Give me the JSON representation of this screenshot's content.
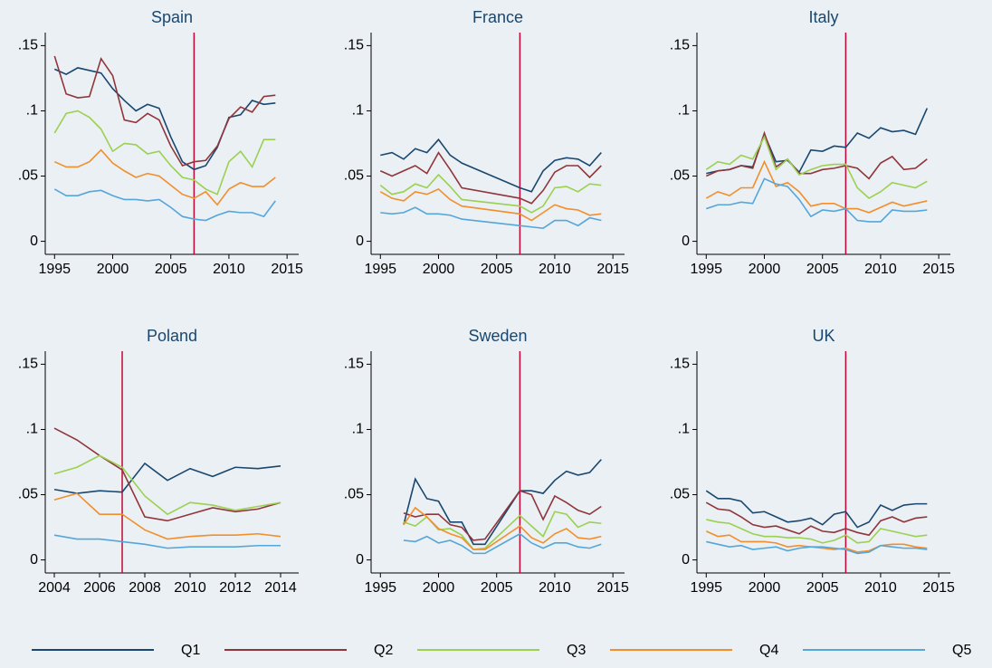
{
  "chart_data": [
    {
      "type": "line",
      "title": "Spain",
      "vline": 2007,
      "x": [
        1995,
        1996,
        1997,
        1998,
        1999,
        2000,
        2001,
        2002,
        2003,
        2004,
        2005,
        2006,
        2007,
        2008,
        2009,
        2010,
        2011,
        2012,
        2013,
        2014
      ],
      "series": [
        {
          "name": "Q1",
          "color": "#1a476f",
          "values": [
            0.132,
            0.128,
            0.133,
            0.131,
            0.129,
            0.117,
            0.108,
            0.1,
            0.105,
            0.102,
            0.08,
            0.061,
            0.055,
            0.058,
            0.072,
            0.095,
            0.097,
            0.108,
            0.105,
            0.106
          ]
        },
        {
          "name": "Q2",
          "color": "#90353b",
          "values": [
            0.142,
            0.113,
            0.11,
            0.111,
            0.14,
            0.127,
            0.093,
            0.091,
            0.098,
            0.093,
            0.073,
            0.058,
            0.061,
            0.062,
            0.073,
            0.094,
            0.103,
            0.099,
            0.111,
            0.112
          ]
        },
        {
          "name": "Q3",
          "color": "#9bd050",
          "values": [
            0.083,
            0.098,
            0.1,
            0.095,
            0.086,
            0.069,
            0.075,
            0.074,
            0.067,
            0.069,
            0.058,
            0.049,
            0.047,
            0.04,
            0.036,
            0.061,
            0.069,
            0.057,
            0.078,
            0.078
          ]
        },
        {
          "name": "Q4",
          "color": "#f28e2b",
          "values": [
            0.061,
            0.057,
            0.057,
            0.061,
            0.07,
            0.06,
            0.054,
            0.049,
            0.052,
            0.05,
            0.043,
            0.036,
            0.033,
            0.038,
            0.028,
            0.04,
            0.045,
            0.042,
            0.042,
            0.049
          ]
        },
        {
          "name": "Q5",
          "color": "#55a6d9",
          "values": [
            0.04,
            0.035,
            0.035,
            0.038,
            0.039,
            0.035,
            0.032,
            0.032,
            0.031,
            0.032,
            0.026,
            0.019,
            0.017,
            0.016,
            0.02,
            0.023,
            0.022,
            0.022,
            0.019,
            0.031
          ]
        }
      ],
      "xlim": [
        1994.2,
        2016
      ],
      "ylim": [
        -0.01,
        0.16
      ],
      "xticks": [
        1995,
        2000,
        2005,
        2010,
        2015
      ],
      "yticks": [
        0,
        {
          "value": 0.05,
          "label": ".05"
        },
        {
          "value": 0.1,
          "label": ".1"
        },
        {
          "value": 0.15,
          "label": ".15"
        }
      ]
    },
    {
      "type": "line",
      "title": "France",
      "vline": 2007,
      "x": [
        1995,
        1996,
        1997,
        1998,
        1999,
        2000,
        2001,
        2002,
        2007,
        2008,
        2009,
        2010,
        2011,
        2012,
        2013,
        2014
      ],
      "series": [
        {
          "name": "Q1",
          "color": "#1a476f",
          "values": [
            0.066,
            0.068,
            0.063,
            0.071,
            0.068,
            0.078,
            0.066,
            0.06,
            0.041,
            0.038,
            0.054,
            0.062,
            0.064,
            0.063,
            0.058,
            0.068
          ]
        },
        {
          "name": "Q2",
          "color": "#90353b",
          "values": [
            0.054,
            0.05,
            0.054,
            0.058,
            0.052,
            0.068,
            0.055,
            0.041,
            0.033,
            0.029,
            0.039,
            0.053,
            0.058,
            0.058,
            0.049,
            0.058
          ]
        },
        {
          "name": "Q3",
          "color": "#9bd050",
          "values": [
            0.043,
            0.036,
            0.038,
            0.044,
            0.041,
            0.051,
            0.042,
            0.032,
            0.027,
            0.022,
            0.027,
            0.041,
            0.042,
            0.038,
            0.044,
            0.043
          ]
        },
        {
          "name": "Q4",
          "color": "#f28e2b",
          "values": [
            0.038,
            0.033,
            0.031,
            0.038,
            0.036,
            0.04,
            0.032,
            0.027,
            0.021,
            0.016,
            0.022,
            0.028,
            0.025,
            0.024,
            0.02,
            0.021
          ]
        },
        {
          "name": "Q5",
          "color": "#55a6d9",
          "values": [
            0.022,
            0.021,
            0.022,
            0.026,
            0.021,
            0.021,
            0.02,
            0.017,
            0.012,
            0.011,
            0.01,
            0.016,
            0.016,
            0.012,
            0.018,
            0.016
          ]
        }
      ],
      "xlim": [
        1994.2,
        2016
      ],
      "ylim": [
        -0.01,
        0.16
      ],
      "xticks": [
        1995,
        2000,
        2005,
        2010,
        2015
      ],
      "yticks": [
        0,
        {
          "value": 0.05,
          "label": ".05"
        },
        {
          "value": 0.1,
          "label": ".1"
        },
        {
          "value": 0.15,
          "label": ".15"
        }
      ]
    },
    {
      "type": "line",
      "title": "Italy",
      "vline": 2007,
      "x": [
        1995,
        1996,
        1997,
        1998,
        1999,
        2000,
        2001,
        2002,
        2003,
        2004,
        2005,
        2006,
        2007,
        2008,
        2009,
        2010,
        2011,
        2012,
        2013,
        2014
      ],
      "series": [
        {
          "name": "Q1",
          "color": "#1a476f",
          "values": [
            0.052,
            0.054,
            0.055,
            0.058,
            0.057,
            0.082,
            0.061,
            0.062,
            0.053,
            0.07,
            0.069,
            0.073,
            0.072,
            0.083,
            0.079,
            0.087,
            0.084,
            0.085,
            0.082,
            0.102
          ]
        },
        {
          "name": "Q2",
          "color": "#90353b",
          "values": [
            0.05,
            0.054,
            0.055,
            0.058,
            0.056,
            0.083,
            0.057,
            0.063,
            0.052,
            0.052,
            0.055,
            0.056,
            0.058,
            0.056,
            0.048,
            0.06,
            0.065,
            0.055,
            0.056,
            0.063
          ]
        },
        {
          "name": "Q3",
          "color": "#9bd050",
          "values": [
            0.055,
            0.061,
            0.059,
            0.066,
            0.063,
            0.08,
            0.055,
            0.063,
            0.051,
            0.055,
            0.058,
            0.059,
            0.059,
            0.041,
            0.033,
            0.038,
            0.045,
            0.043,
            0.041,
            0.046
          ]
        },
        {
          "name": "Q4",
          "color": "#f28e2b",
          "values": [
            0.033,
            0.038,
            0.035,
            0.041,
            0.041,
            0.061,
            0.042,
            0.045,
            0.038,
            0.027,
            0.029,
            0.029,
            0.025,
            0.025,
            0.022,
            0.026,
            0.03,
            0.027,
            0.029,
            0.031
          ]
        },
        {
          "name": "Q5",
          "color": "#55a6d9",
          "values": [
            0.025,
            0.028,
            0.028,
            0.03,
            0.029,
            0.048,
            0.044,
            0.042,
            0.032,
            0.019,
            0.024,
            0.023,
            0.025,
            0.016,
            0.015,
            0.015,
            0.024,
            0.023,
            0.023,
            0.024
          ]
        }
      ],
      "xlim": [
        1994.2,
        2016
      ],
      "ylim": [
        -0.01,
        0.16
      ],
      "xticks": [
        1995,
        2000,
        2005,
        2010,
        2015
      ],
      "yticks": [
        0,
        {
          "value": 0.05,
          "label": ".05"
        },
        {
          "value": 0.1,
          "label": ".1"
        },
        {
          "value": 0.15,
          "label": ".15"
        }
      ]
    },
    {
      "type": "line",
      "title": "Poland",
      "vline": 2007,
      "x": [
        2004,
        2005,
        2006,
        2007,
        2008,
        2009,
        2010,
        2011,
        2012,
        2013,
        2014
      ],
      "series": [
        {
          "name": "Q1",
          "color": "#1a476f",
          "values": [
            0.054,
            0.051,
            0.053,
            0.052,
            0.074,
            0.061,
            0.07,
            0.064,
            0.071,
            0.07,
            0.072
          ]
        },
        {
          "name": "Q2",
          "color": "#90353b",
          "values": [
            0.101,
            0.092,
            0.08,
            0.069,
            0.033,
            0.03,
            0.035,
            0.04,
            0.037,
            0.039,
            0.044
          ]
        },
        {
          "name": "Q3",
          "color": "#9bd050",
          "values": [
            0.066,
            0.071,
            0.08,
            0.071,
            0.049,
            0.035,
            0.044,
            0.042,
            0.038,
            0.041,
            0.044
          ]
        },
        {
          "name": "Q4",
          "color": "#f28e2b",
          "values": [
            0.046,
            0.051,
            0.035,
            0.035,
            0.023,
            0.016,
            0.018,
            0.019,
            0.019,
            0.02,
            0.018
          ]
        },
        {
          "name": "Q5",
          "color": "#55a6d9",
          "values": [
            0.019,
            0.016,
            0.016,
            0.014,
            0.012,
            0.009,
            0.01,
            0.01,
            0.01,
            0.011,
            0.011
          ]
        }
      ],
      "xlim": [
        2003.6,
        2014.8
      ],
      "ylim": [
        -0.01,
        0.16
      ],
      "xticks": [
        2004,
        2006,
        2008,
        2010,
        2012,
        2014
      ],
      "yticks": [
        0,
        {
          "value": 0.05,
          "label": ".05"
        },
        {
          "value": 0.1,
          "label": ".1"
        },
        {
          "value": 0.15,
          "label": ".15"
        }
      ]
    },
    {
      "type": "line",
      "title": "Sweden",
      "vline": 2007,
      "x": [
        1997,
        1998,
        1999,
        2000,
        2001,
        2002,
        2003,
        2004,
        2007,
        2008,
        2009,
        2010,
        2011,
        2012,
        2013,
        2014
      ],
      "series": [
        {
          "name": "Q1",
          "color": "#1a476f",
          "values": [
            0.027,
            0.062,
            0.047,
            0.045,
            0.029,
            0.029,
            0.012,
            0.012,
            0.053,
            0.053,
            0.051,
            0.061,
            0.068,
            0.065,
            0.067,
            0.077
          ]
        },
        {
          "name": "Q2",
          "color": "#90353b",
          "values": [
            0.036,
            0.033,
            0.035,
            0.035,
            0.027,
            0.025,
            0.015,
            0.016,
            0.053,
            0.05,
            0.031,
            0.049,
            0.044,
            0.038,
            0.035,
            0.041
          ]
        },
        {
          "name": "Q3",
          "color": "#9bd050",
          "values": [
            0.029,
            0.026,
            0.033,
            0.023,
            0.024,
            0.019,
            0.008,
            0.009,
            0.034,
            0.026,
            0.018,
            0.037,
            0.035,
            0.025,
            0.029,
            0.028
          ]
        },
        {
          "name": "Q4",
          "color": "#f28e2b",
          "values": [
            0.027,
            0.04,
            0.033,
            0.024,
            0.02,
            0.017,
            0.008,
            0.008,
            0.026,
            0.017,
            0.013,
            0.02,
            0.024,
            0.017,
            0.016,
            0.018
          ]
        },
        {
          "name": "Q5",
          "color": "#55a6d9",
          "values": [
            0.015,
            0.014,
            0.018,
            0.013,
            0.015,
            0.011,
            0.005,
            0.005,
            0.02,
            0.013,
            0.009,
            0.013,
            0.013,
            0.01,
            0.009,
            0.012
          ]
        }
      ],
      "xlim": [
        1994.2,
        2016
      ],
      "ylim": [
        -0.01,
        0.16
      ],
      "xticks": [
        1995,
        2000,
        2005,
        2010,
        2015
      ],
      "yticks": [
        0,
        {
          "value": 0.05,
          "label": ".05"
        },
        {
          "value": 0.1,
          "label": ".1"
        },
        {
          "value": 0.15,
          "label": ".15"
        }
      ]
    },
    {
      "type": "line",
      "title": "UK",
      "vline": 2007,
      "x": [
        1995,
        1996,
        1997,
        1998,
        1999,
        2000,
        2001,
        2002,
        2003,
        2004,
        2005,
        2006,
        2007,
        2008,
        2009,
        2010,
        2011,
        2012,
        2013,
        2014
      ],
      "series": [
        {
          "name": "Q1",
          "color": "#1a476f",
          "values": [
            0.053,
            0.047,
            0.047,
            0.045,
            0.036,
            0.037,
            0.033,
            0.029,
            0.03,
            0.032,
            0.027,
            0.035,
            0.037,
            0.025,
            0.029,
            0.042,
            0.038,
            0.042,
            0.043,
            0.043
          ]
        },
        {
          "name": "Q2",
          "color": "#90353b",
          "values": [
            0.044,
            0.039,
            0.038,
            0.033,
            0.027,
            0.025,
            0.026,
            0.023,
            0.02,
            0.026,
            0.022,
            0.021,
            0.024,
            0.021,
            0.019,
            0.03,
            0.033,
            0.029,
            0.032,
            0.033
          ]
        },
        {
          "name": "Q3",
          "color": "#9bd050",
          "values": [
            0.031,
            0.029,
            0.028,
            0.024,
            0.02,
            0.018,
            0.018,
            0.017,
            0.017,
            0.016,
            0.013,
            0.015,
            0.019,
            0.013,
            0.014,
            0.024,
            0.022,
            0.02,
            0.018,
            0.019
          ]
        },
        {
          "name": "Q4",
          "color": "#f28e2b",
          "values": [
            0.022,
            0.018,
            0.019,
            0.014,
            0.014,
            0.014,
            0.013,
            0.01,
            0.011,
            0.01,
            0.009,
            0.008,
            0.009,
            0.006,
            0.007,
            0.011,
            0.012,
            0.012,
            0.01,
            0.009
          ]
        },
        {
          "name": "Q5",
          "color": "#55a6d9",
          "values": [
            0.014,
            0.012,
            0.01,
            0.011,
            0.008,
            0.009,
            0.01,
            0.007,
            0.009,
            0.01,
            0.01,
            0.009,
            0.008,
            0.005,
            0.006,
            0.011,
            0.01,
            0.009,
            0.009,
            0.008
          ]
        }
      ],
      "xlim": [
        1994.2,
        2016
      ],
      "ylim": [
        -0.01,
        0.16
      ],
      "xticks": [
        1995,
        2000,
        2005,
        2010,
        2015
      ],
      "yticks": [
        0,
        {
          "value": 0.05,
          "label": ".05"
        },
        {
          "value": 0.1,
          "label": ".1"
        },
        {
          "value": 0.15,
          "label": ".15"
        }
      ]
    }
  ]
}
